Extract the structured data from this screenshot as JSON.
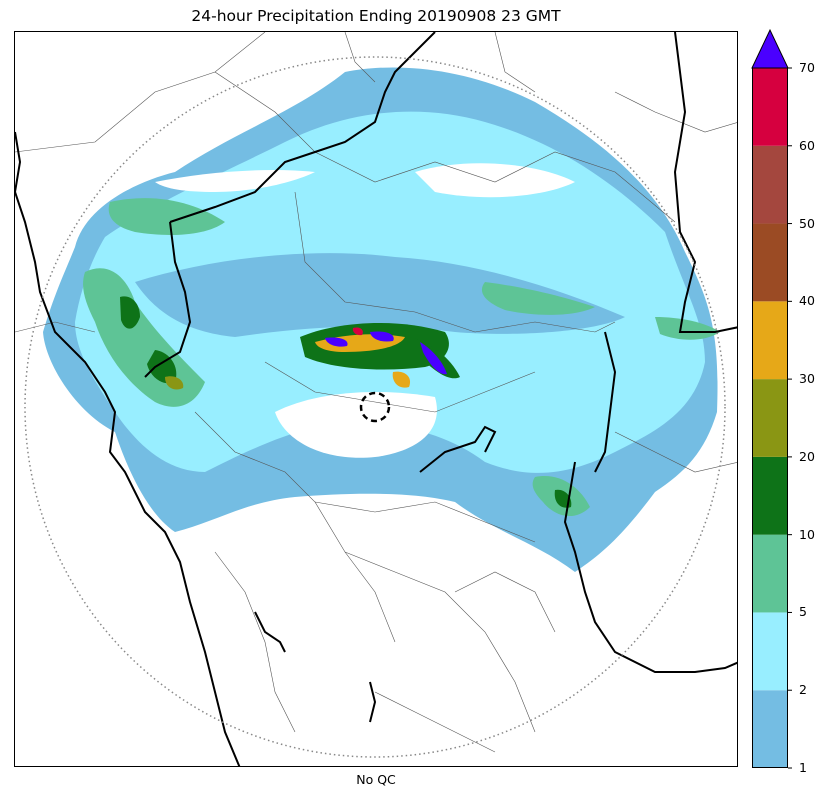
{
  "title": "24-hour Precipitation Ending 20190908 23 GMT",
  "xlabel": "No QC",
  "colorbar": {
    "levels": [
      1,
      2,
      5,
      10,
      20,
      30,
      40,
      50,
      60,
      70
    ],
    "tick_labels": [
      "1",
      "2",
      "5",
      "10",
      "20",
      "30",
      "40",
      "50",
      "60",
      "70"
    ],
    "colors": [
      "#74bde3",
      "#98eeff",
      "#5ec496",
      "#0e7318",
      "#8a9614",
      "#e6a818",
      "#9b4b24",
      "#a4473e",
      "#d6003f"
    ],
    "extend_color": "#4a00ff"
  },
  "colors": {
    "boundary_thick": "#000000",
    "boundary_thin": "#555555",
    "range_ring": "#888888"
  }
}
